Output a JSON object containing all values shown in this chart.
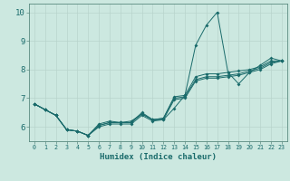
{
  "xlabel": "Humidex (Indice chaleur)",
  "xlim": [
    -0.5,
    23.5
  ],
  "ylim": [
    5.5,
    10.3
  ],
  "yticks": [
    6,
    7,
    8,
    9,
    10
  ],
  "xticks": [
    0,
    1,
    2,
    3,
    4,
    5,
    6,
    7,
    8,
    9,
    10,
    11,
    12,
    13,
    14,
    15,
    16,
    17,
    18,
    19,
    20,
    21,
    22,
    23
  ],
  "bg_color": "#cce8e0",
  "line_color": "#1a6b6b",
  "grid_color": "#b8d4cc",
  "series": [
    [
      6.8,
      6.6,
      6.4,
      5.9,
      5.85,
      5.7,
      6.1,
      6.2,
      6.15,
      6.15,
      6.5,
      6.25,
      6.25,
      6.65,
      7.1,
      8.85,
      9.55,
      10.0,
      7.9,
      7.5,
      7.9,
      8.15,
      8.4,
      8.3
    ],
    [
      6.8,
      6.6,
      6.4,
      5.9,
      5.85,
      5.7,
      6.05,
      6.15,
      6.15,
      6.2,
      6.45,
      6.25,
      6.3,
      7.05,
      7.1,
      7.75,
      7.85,
      7.85,
      7.9,
      7.95,
      8.0,
      8.1,
      8.3,
      8.3
    ],
    [
      6.8,
      6.6,
      6.4,
      5.9,
      5.85,
      5.7,
      6.05,
      6.15,
      6.15,
      6.15,
      6.45,
      6.25,
      6.3,
      7.0,
      7.05,
      7.65,
      7.75,
      7.75,
      7.8,
      7.85,
      7.95,
      8.05,
      8.25,
      8.3
    ],
    [
      6.8,
      6.6,
      6.4,
      5.9,
      5.85,
      5.7,
      6.0,
      6.1,
      6.1,
      6.1,
      6.4,
      6.2,
      6.25,
      6.95,
      7.0,
      7.6,
      7.7,
      7.7,
      7.75,
      7.8,
      7.9,
      8.0,
      8.2,
      8.3
    ]
  ]
}
